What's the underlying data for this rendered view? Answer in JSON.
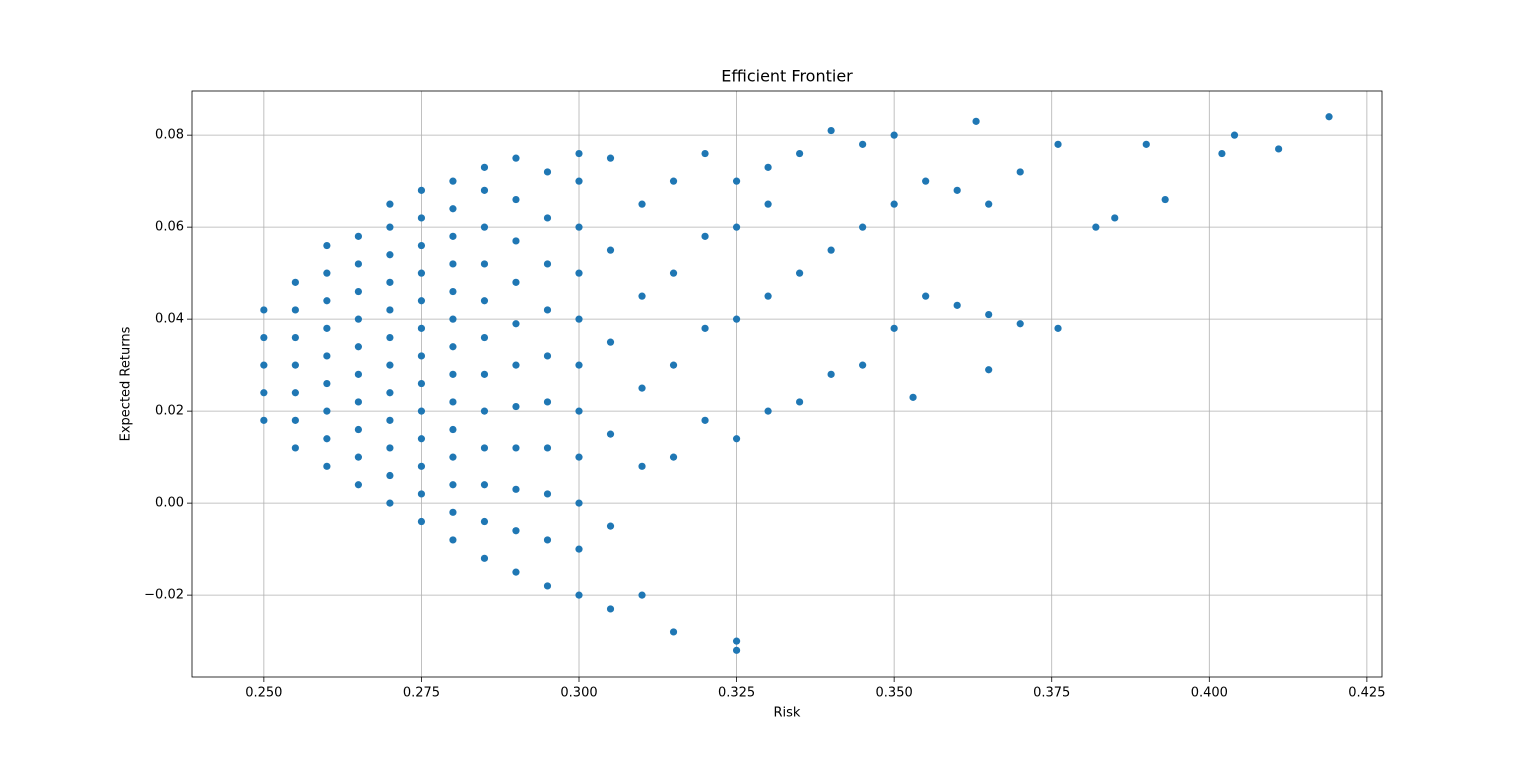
{
  "chart_data": {
    "type": "scatter",
    "title": "Efficient Frontier",
    "x_label": "Risk",
    "y_label": "Expected Returns",
    "color": "#1f77b4",
    "grid": true,
    "xlim": [
      0.2386,
      0.4274
    ],
    "ylim": [
      -0.0378,
      0.0896
    ],
    "xticks": [
      {
        "value": 0.25,
        "label": "0.250"
      },
      {
        "value": 0.275,
        "label": "0.275"
      },
      {
        "value": 0.3,
        "label": "0.300"
      },
      {
        "value": 0.325,
        "label": "0.325"
      },
      {
        "value": 0.35,
        "label": "0.350"
      },
      {
        "value": 0.375,
        "label": "0.375"
      },
      {
        "value": 0.4,
        "label": "0.400"
      },
      {
        "value": 0.425,
        "label": "0.425"
      }
    ],
    "yticks": [
      {
        "value": -0.02,
        "label": "−0.02"
      },
      {
        "value": 0,
        "label": "0.00"
      },
      {
        "value": 0.02,
        "label": "0.02"
      },
      {
        "value": 0.04,
        "label": "0.04"
      },
      {
        "value": 0.06,
        "label": "0.06"
      },
      {
        "value": 0.08,
        "label": "0.08"
      }
    ],
    "x": [
      0.25,
      0.25,
      0.25,
      0.25,
      0.25,
      0.255,
      0.255,
      0.255,
      0.255,
      0.255,
      0.255,
      0.255,
      0.26,
      0.26,
      0.26,
      0.26,
      0.26,
      0.26,
      0.26,
      0.26,
      0.26,
      0.265,
      0.265,
      0.265,
      0.265,
      0.265,
      0.265,
      0.265,
      0.265,
      0.265,
      0.265,
      0.27,
      0.27,
      0.27,
      0.27,
      0.27,
      0.27,
      0.27,
      0.27,
      0.27,
      0.27,
      0.27,
      0.27,
      0.275,
      0.275,
      0.275,
      0.275,
      0.275,
      0.275,
      0.275,
      0.275,
      0.275,
      0.275,
      0.275,
      0.275,
      0.275,
      0.28,
      0.28,
      0.28,
      0.28,
      0.28,
      0.28,
      0.28,
      0.28,
      0.28,
      0.28,
      0.28,
      0.28,
      0.28,
      0.28,
      0.285,
      0.285,
      0.285,
      0.285,
      0.285,
      0.285,
      0.285,
      0.285,
      0.285,
      0.285,
      0.285,
      0.285,
      0.29,
      0.29,
      0.29,
      0.29,
      0.29,
      0.29,
      0.29,
      0.29,
      0.29,
      0.29,
      0.29,
      0.295,
      0.295,
      0.295,
      0.295,
      0.295,
      0.295,
      0.295,
      0.295,
      0.295,
      0.295,
      0.3,
      0.3,
      0.3,
      0.3,
      0.3,
      0.3,
      0.3,
      0.3,
      0.3,
      0.3,
      0.3,
      0.305,
      0.305,
      0.305,
      0.305,
      0.305,
      0.305,
      0.31,
      0.31,
      0.31,
      0.31,
      0.31,
      0.315,
      0.315,
      0.315,
      0.315,
      0.315,
      0.32,
      0.32,
      0.32,
      0.32,
      0.325,
      0.325,
      0.325,
      0.325,
      0.325,
      0.325,
      0.33,
      0.33,
      0.33,
      0.33,
      0.335,
      0.335,
      0.335,
      0.34,
      0.34,
      0.34,
      0.345,
      0.345,
      0.345,
      0.35,
      0.35,
      0.35,
      0.353,
      0.355,
      0.355,
      0.36,
      0.36,
      0.363,
      0.365,
      0.365,
      0.365,
      0.37,
      0.37,
      0.376,
      0.376,
      0.382,
      0.385,
      0.39,
      0.393,
      0.402,
      0.404,
      0.411,
      0.419
    ],
    "values": [
      0.018,
      0.024,
      0.03,
      0.036,
      0.042,
      0.012,
      0.018,
      0.024,
      0.03,
      0.036,
      0.042,
      0.048,
      0.008,
      0.014,
      0.02,
      0.026,
      0.032,
      0.038,
      0.044,
      0.05,
      0.056,
      0.004,
      0.01,
      0.016,
      0.022,
      0.028,
      0.034,
      0.04,
      0.046,
      0.052,
      0.058,
      0.0,
      0.006,
      0.012,
      0.018,
      0.024,
      0.03,
      0.036,
      0.042,
      0.048,
      0.054,
      0.06,
      0.065,
      -0.004,
      0.002,
      0.008,
      0.014,
      0.02,
      0.026,
      0.032,
      0.038,
      0.044,
      0.05,
      0.056,
      0.062,
      0.068,
      -0.008,
      -0.002,
      0.004,
      0.01,
      0.016,
      0.022,
      0.028,
      0.034,
      0.04,
      0.046,
      0.052,
      0.058,
      0.064,
      0.07,
      -0.012,
      -0.004,
      0.004,
      0.012,
      0.02,
      0.028,
      0.036,
      0.044,
      0.052,
      0.06,
      0.068,
      0.073,
      -0.015,
      -0.006,
      0.003,
      0.012,
      0.021,
      0.03,
      0.039,
      0.048,
      0.057,
      0.066,
      0.075,
      -0.018,
      -0.008,
      0.002,
      0.012,
      0.022,
      0.032,
      0.042,
      0.052,
      0.062,
      0.072,
      -0.02,
      -0.01,
      0.0,
      0.01,
      0.02,
      0.03,
      0.04,
      0.05,
      0.06,
      0.07,
      0.076,
      -0.023,
      -0.005,
      0.015,
      0.035,
      0.055,
      0.075,
      -0.02,
      0.008,
      0.025,
      0.045,
      0.065,
      -0.028,
      0.01,
      0.03,
      0.05,
      0.07,
      0.018,
      0.038,
      0.058,
      0.076,
      -0.032,
      -0.03,
      0.014,
      0.04,
      0.06,
      0.07,
      0.02,
      0.045,
      0.065,
      0.073,
      0.022,
      0.05,
      0.076,
      0.028,
      0.055,
      0.081,
      0.03,
      0.06,
      0.078,
      0.038,
      0.065,
      0.08,
      0.023,
      0.045,
      0.07,
      0.043,
      0.068,
      0.083,
      0.029,
      0.041,
      0.065,
      0.039,
      0.072,
      0.038,
      0.078,
      0.06,
      0.062,
      0.078,
      0.066,
      0.076,
      0.08,
      0.077,
      0.084
    ]
  }
}
